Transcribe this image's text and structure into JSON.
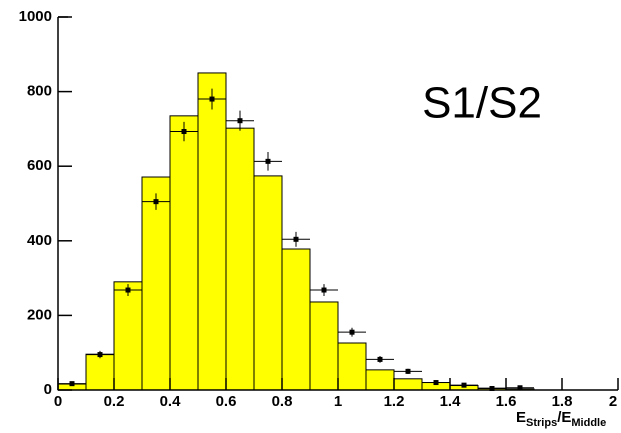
{
  "chart_data": {
    "type": "histogram",
    "annotation": "S1/S2",
    "x_label": [
      "E",
      "Strips",
      "/E",
      "Middle"
    ],
    "bins": [
      0,
      0.1,
      0.2,
      0.3,
      0.4,
      0.5,
      0.6,
      0.7,
      0.8,
      0.9,
      1.0,
      1.1,
      1.2,
      1.3,
      1.4,
      1.5,
      1.6,
      1.7,
      1.8,
      1.9,
      2.0
    ],
    "values": [
      16,
      96,
      290,
      571,
      735,
      850,
      702,
      574,
      378,
      236,
      126,
      54,
      30,
      20,
      12,
      5,
      3,
      0,
      0,
      0
    ],
    "color": "#ffff00",
    "points": {
      "x": [
        0.05,
        0.15,
        0.25,
        0.35,
        0.45,
        0.55,
        0.65,
        0.75,
        0.85,
        0.95,
        1.05,
        1.15,
        1.25,
        1.35,
        1.45,
        1.55,
        1.65
      ],
      "values": [
        17,
        95,
        268,
        505,
        693,
        780,
        722,
        613,
        404,
        268,
        155,
        82,
        50,
        20,
        13,
        4,
        6
      ],
      "errors": [
        4,
        10,
        16,
        22,
        26,
        28,
        27,
        25,
        20,
        16,
        12,
        9,
        7,
        4,
        4,
        2,
        2
      ],
      "x_error": 0.05,
      "color": "#000000"
    },
    "xlim": [
      0,
      2
    ],
    "xticks": [
      0,
      0.2,
      0.4,
      0.6,
      0.8,
      1,
      1.2,
      1.4,
      1.6,
      1.8,
      2
    ],
    "ylim": [
      0,
      1000
    ],
    "yticks": [
      0,
      200,
      400,
      600,
      800,
      1000
    ]
  }
}
